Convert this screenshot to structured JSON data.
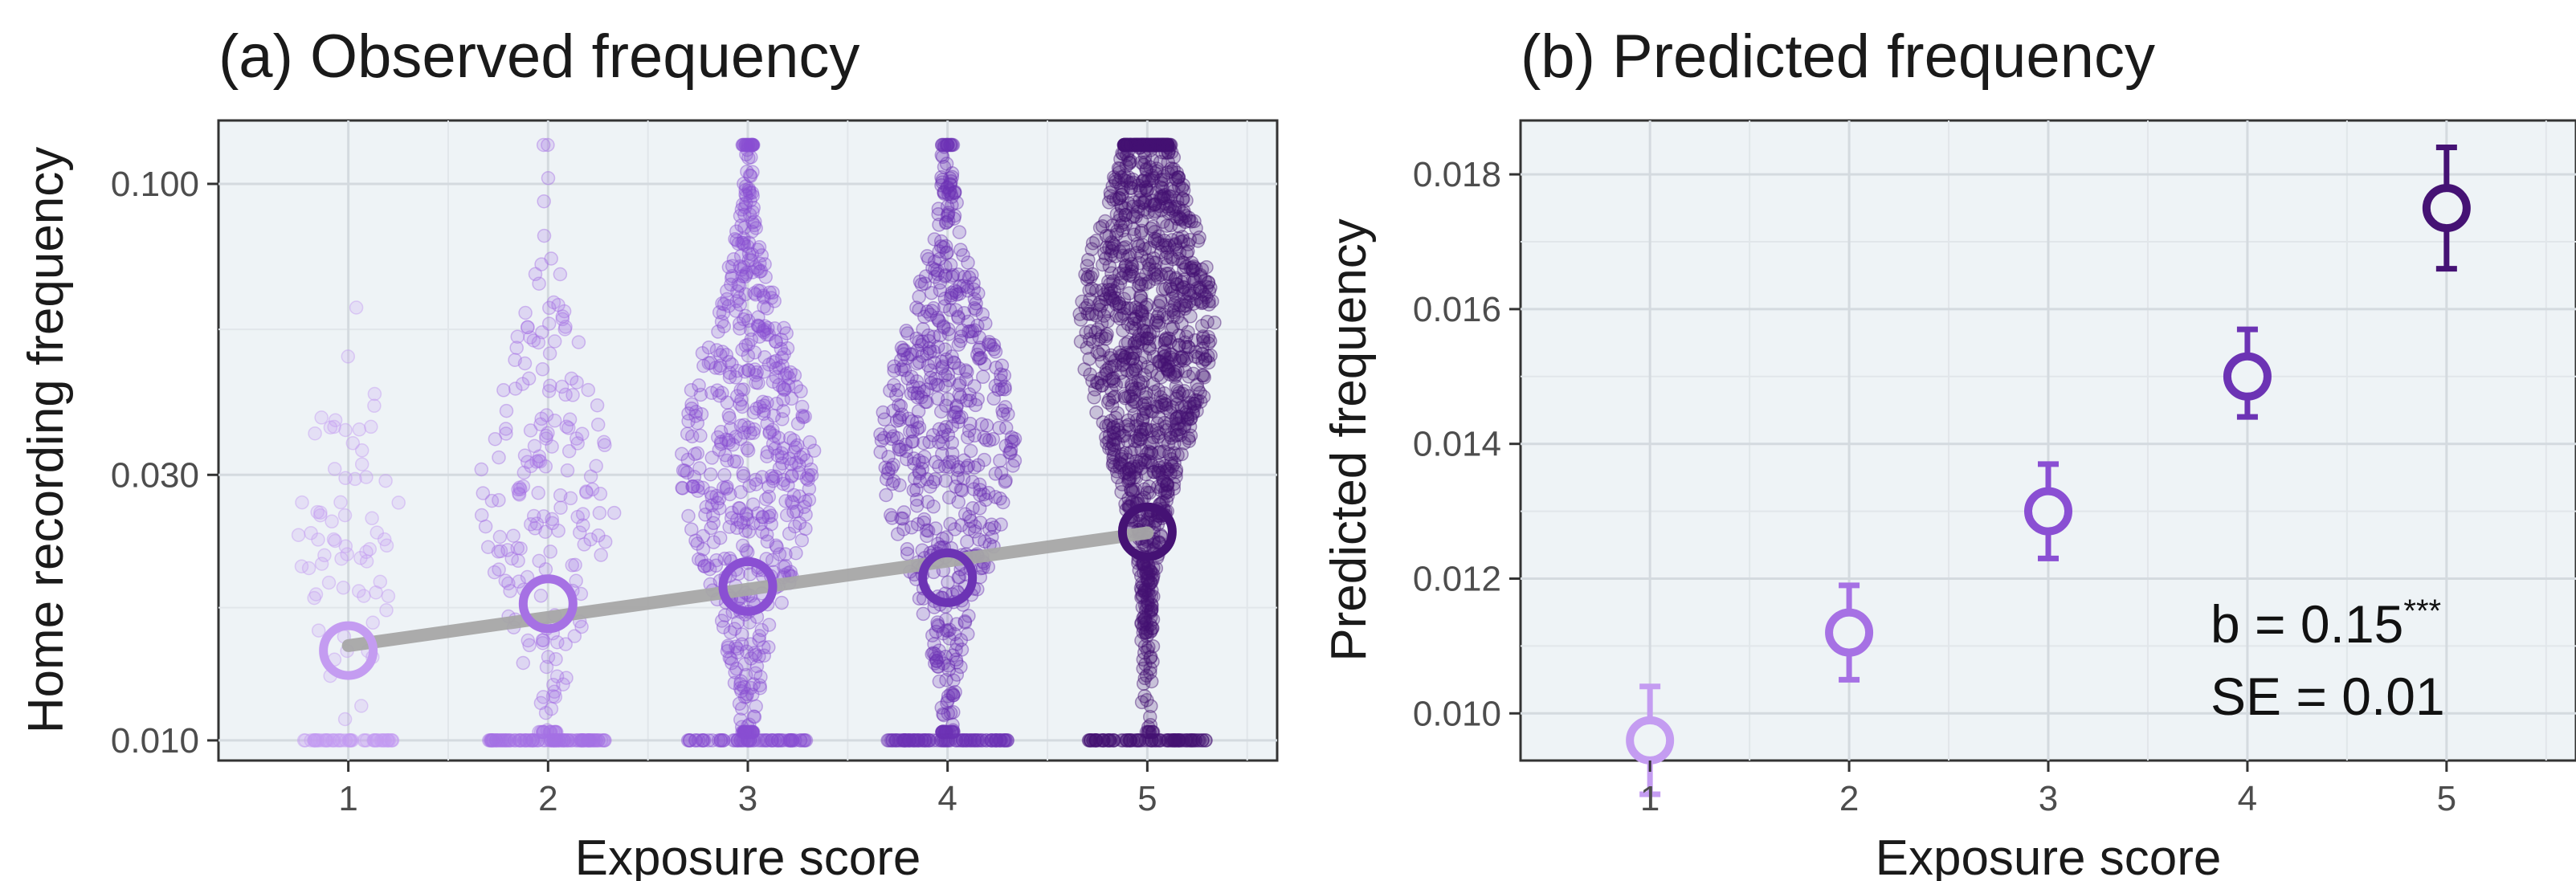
{
  "chart_data": [
    {
      "type": "scatter",
      "title": "(a) Observed frequency",
      "xlabel": "Exposure score",
      "ylabel": "Home recording frequency",
      "y_scale": "log",
      "xlim": [
        0.35,
        5.65
      ],
      "ylim": [
        0.0092,
        0.13
      ],
      "x_ticks": [
        "1",
        "2",
        "3",
        "4",
        "5"
      ],
      "y_ticks": [
        {
          "value": 0.01,
          "label": "0.010"
        },
        {
          "value": 0.03,
          "label": "0.030"
        },
        {
          "value": 0.1,
          "label": "0.100"
        }
      ],
      "grid": true,
      "points_per_group": [
        120,
        300,
        650,
        700,
        1400
      ],
      "means": [
        {
          "x": 1,
          "y": 0.0145
        },
        {
          "x": 2,
          "y": 0.0176
        },
        {
          "x": 3,
          "y": 0.0189
        },
        {
          "x": 4,
          "y": 0.0196
        },
        {
          "x": 5,
          "y": 0.0237
        }
      ],
      "trend_line": {
        "x": [
          1,
          5
        ],
        "y": [
          0.0148,
          0.0236
        ]
      },
      "colors": [
        "#c49cf1",
        "#a671e4",
        "#8a4fd3",
        "#6c33b4",
        "#451274"
      ],
      "trend_color": "#a6a6a6",
      "panel_bg": "#eef3f6"
    },
    {
      "type": "scatter",
      "title": "(b) Predicted frequency",
      "xlabel": "Exposure score",
      "ylabel": "Predicted frequency",
      "xlim": [
        0.35,
        5.65
      ],
      "ylim": [
        0.0093,
        0.0188
      ],
      "x_ticks": [
        "1",
        "2",
        "3",
        "4",
        "5"
      ],
      "y_ticks": [
        {
          "value": 0.01,
          "label": "0.010"
        },
        {
          "value": 0.012,
          "label": "0.012"
        },
        {
          "value": 0.014,
          "label": "0.014"
        },
        {
          "value": 0.016,
          "label": "0.016"
        },
        {
          "value": 0.018,
          "label": "0.018"
        }
      ],
      "grid": true,
      "points": [
        {
          "x": 1,
          "y": 0.0096,
          "lo": 0.0088,
          "hi": 0.0104
        },
        {
          "x": 2,
          "y": 0.0112,
          "lo": 0.0105,
          "hi": 0.0119
        },
        {
          "x": 3,
          "y": 0.013,
          "lo": 0.0123,
          "hi": 0.0137
        },
        {
          "x": 4,
          "y": 0.015,
          "lo": 0.0144,
          "hi": 0.0157
        },
        {
          "x": 5,
          "y": 0.0175,
          "lo": 0.0166,
          "hi": 0.0184
        }
      ],
      "annotation": {
        "b_text": "b = 0.15",
        "b_stars": "***",
        "se_text": "SE = 0.01"
      },
      "colors": [
        "#c49cf1",
        "#a671e4",
        "#8a4fd3",
        "#6c33b4",
        "#451274"
      ],
      "panel_bg": "#eef3f6"
    }
  ]
}
